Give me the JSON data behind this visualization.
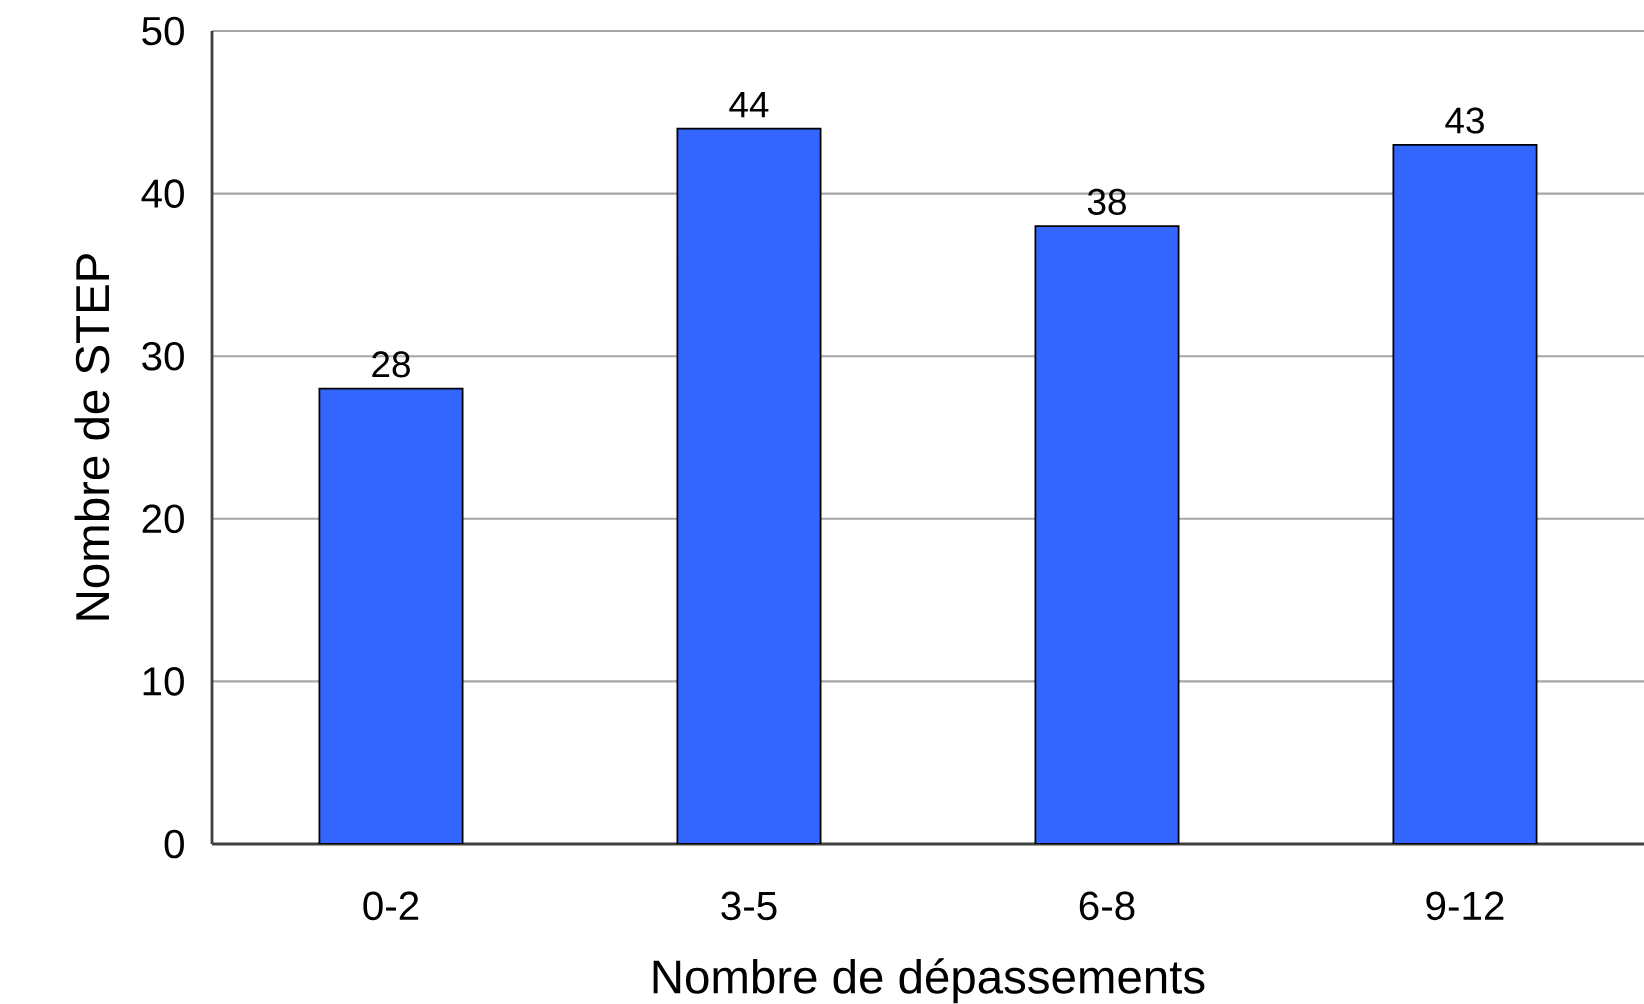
{
  "chart_data": {
    "type": "bar",
    "xlabel": "Nombre de dépassements",
    "ylabel": "Nombre de STEP",
    "categories": [
      "0-2",
      "3-5",
      "6-8",
      "9-12"
    ],
    "values": [
      28,
      44,
      38,
      43
    ],
    "color": "#3366ff",
    "ylim": [
      0,
      50
    ],
    "yticks": [
      0,
      10,
      20,
      30,
      40,
      50
    ],
    "grid": "y",
    "data_labels": true
  }
}
